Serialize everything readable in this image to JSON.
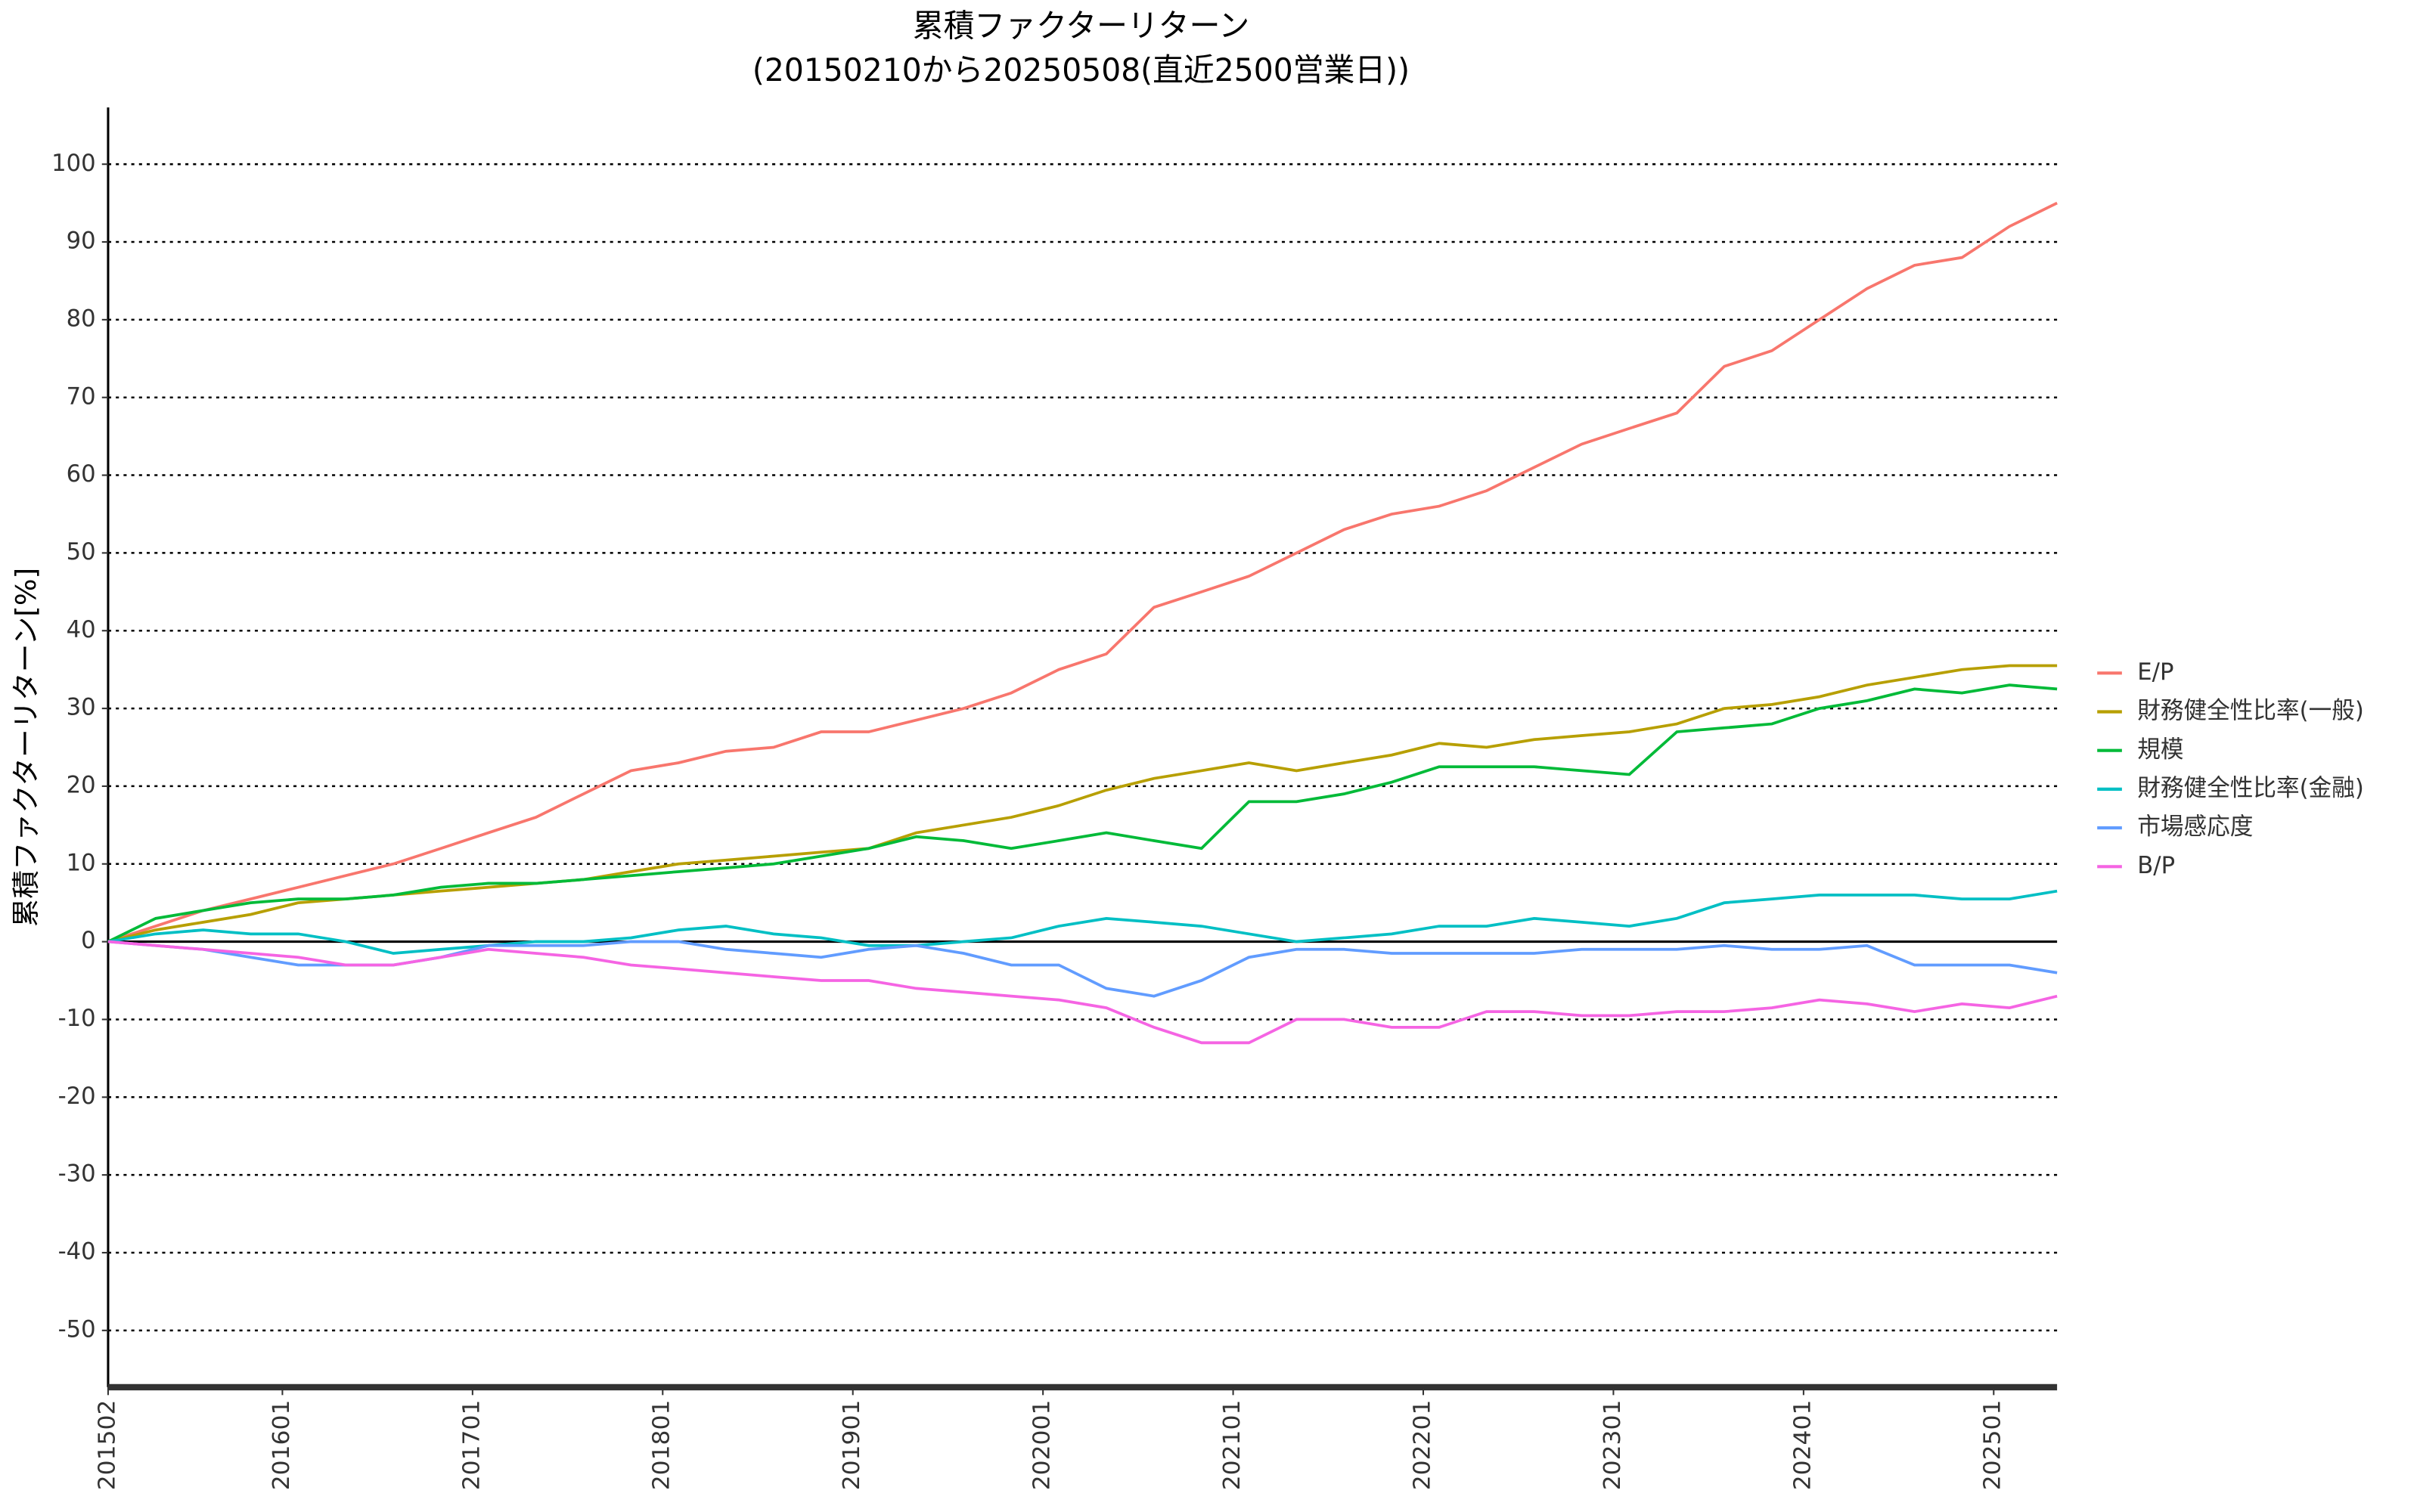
{
  "chart_data": {
    "type": "line",
    "title": "累積ファクターリターン",
    "subtitle": "(20150210から20250508(直近2500営業日))",
    "y_label": "累積ファクターリターン[%]",
    "x": [
      "201502",
      "201505",
      "201508",
      "201511",
      "201602",
      "201605",
      "201608",
      "201611",
      "201702",
      "201705",
      "201708",
      "201711",
      "201802",
      "201805",
      "201808",
      "201811",
      "201902",
      "201905",
      "201908",
      "201911",
      "202002",
      "202005",
      "202008",
      "202011",
      "202102",
      "202105",
      "202108",
      "202111",
      "202202",
      "202205",
      "202208",
      "202211",
      "202302",
      "202305",
      "202308",
      "202311",
      "202402",
      "202405",
      "202408",
      "202411",
      "202502",
      "202505"
    ],
    "xlim": [
      "201502",
      "202505"
    ],
    "xticks": [
      "201502",
      "201601",
      "201701",
      "201801",
      "201901",
      "202001",
      "202101",
      "202201",
      "202301",
      "202401",
      "202501"
    ],
    "ylim": [
      -57.3,
      107.3
    ],
    "yticks": [
      -50,
      -40,
      -30,
      -20,
      -10,
      0,
      10,
      20,
      30,
      40,
      50,
      60,
      70,
      80,
      90,
      100
    ],
    "grid": true,
    "legend": "right",
    "series": [
      {
        "name": "E/P",
        "color": "#F8766D",
        "values": [
          0,
          2,
          4,
          5.5,
          7,
          8.5,
          10,
          12,
          14,
          16,
          19,
          22,
          23,
          24.5,
          25,
          27,
          27,
          28.5,
          30,
          32,
          35,
          37,
          43,
          45,
          47,
          50,
          53,
          55,
          56,
          58,
          61,
          64,
          66,
          68,
          74,
          76,
          80,
          84,
          87,
          88,
          92,
          95
        ]
      },
      {
        "name": "財務健全性比率(一般)",
        "color": "#B79F00",
        "values": [
          0,
          1.5,
          2.5,
          3.5,
          5,
          5.5,
          6,
          6.5,
          7,
          7.5,
          8,
          9,
          10,
          10.5,
          11,
          11.5,
          12,
          14,
          15,
          16,
          17.5,
          19.5,
          21,
          22,
          23,
          22,
          23,
          24,
          25.5,
          25,
          26,
          26.5,
          27,
          28,
          30,
          30.5,
          31.5,
          33,
          34,
          35,
          35.5,
          35.5
        ]
      },
      {
        "name": "規模",
        "color": "#00BA38",
        "values": [
          0,
          3,
          4,
          5,
          5.5,
          5.5,
          6,
          7,
          7.5,
          7.5,
          8,
          8.5,
          9,
          9.5,
          10,
          11,
          12,
          13.5,
          13,
          12,
          13,
          14,
          13,
          12,
          18,
          18,
          19,
          20.5,
          22.5,
          22.5,
          22.5,
          22,
          21.5,
          27,
          27.5,
          28,
          30,
          31,
          32.5,
          32,
          33,
          32.5
        ]
      },
      {
        "name": "財務健全性比率(金融)",
        "color": "#00BFC4",
        "values": [
          0,
          1,
          1.5,
          1,
          1,
          0,
          -1.5,
          -1,
          -0.5,
          0,
          0,
          0.5,
          1.5,
          2,
          1,
          0.5,
          -0.5,
          -0.5,
          0,
          0.5,
          2,
          3,
          2.5,
          2,
          1,
          0,
          0.5,
          1,
          2,
          2,
          3,
          2.5,
          2,
          3,
          5,
          5.5,
          6,
          6,
          6,
          5.5,
          5.5,
          6.5
        ]
      },
      {
        "name": "市場感応度",
        "color": "#619CFF",
        "values": [
          0,
          -0.5,
          -1,
          -2,
          -3,
          -3,
          -3,
          -2,
          -0.5,
          -0.5,
          -0.5,
          0,
          0,
          -1,
          -1.5,
          -2,
          -1,
          -0.5,
          -1.5,
          -3,
          -3,
          -6,
          -7,
          -5,
          -2,
          -1,
          -1,
          -1.5,
          -1.5,
          -1.5,
          -1.5,
          -1,
          -1,
          -1,
          -0.5,
          -1,
          -1,
          -0.5,
          -3,
          -3,
          -3,
          -4
        ]
      },
      {
        "name": "B/P",
        "color": "#F564E3",
        "values": [
          0,
          -0.5,
          -1,
          -1.5,
          -2,
          -3,
          -3,
          -2,
          -1,
          -1.5,
          -2,
          -3,
          -3.5,
          -4,
          -4.5,
          -5,
          -5,
          -6,
          -6.5,
          -7,
          -7.5,
          -8.5,
          -11,
          -13,
          -13,
          -10,
          -10,
          -11,
          -11,
          -9,
          -9,
          -9.5,
          -9.5,
          -9,
          -9,
          -8.5,
          -7.5,
          -8,
          -9,
          -8,
          -8.5,
          -7
        ]
      }
    ]
  }
}
